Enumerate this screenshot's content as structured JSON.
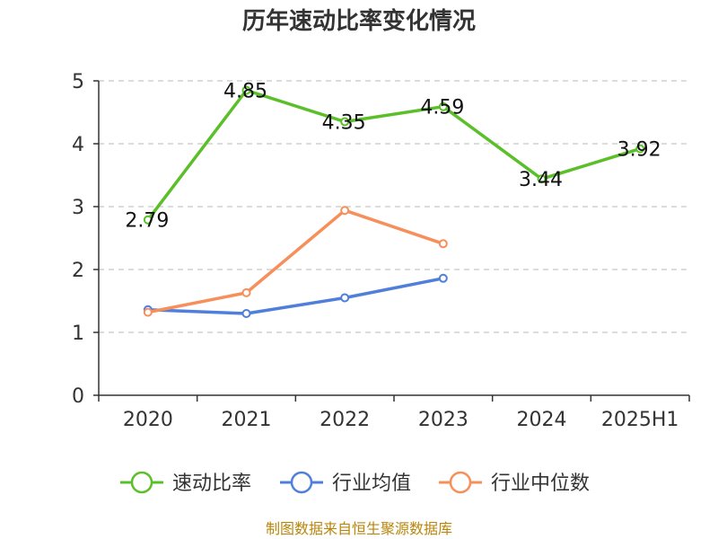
{
  "chart_data": {
    "type": "line",
    "title": "历年速动比率变化情况",
    "categories": [
      "2020",
      "2021",
      "2022",
      "2023",
      "2024",
      "2025H1"
    ],
    "ylim": [
      0,
      5
    ],
    "yticks": [
      0,
      1,
      2,
      3,
      4,
      5
    ],
    "grid": true,
    "legend_position": "bottom",
    "series": [
      {
        "name": "速动比率",
        "color": "#5bbf2a",
        "values": [
          2.79,
          4.85,
          4.35,
          4.59,
          3.44,
          3.92
        ],
        "labels": [
          "2.79",
          "4.85",
          "4.35",
          "4.59",
          "3.44",
          "3.92"
        ],
        "show_labels": true
      },
      {
        "name": "行业均值",
        "color": "#4f7fdb",
        "values": [
          1.36,
          1.3,
          1.55,
          1.86,
          null,
          null
        ],
        "show_labels": false
      },
      {
        "name": "行业中位数",
        "color": "#f78f5a",
        "values": [
          1.32,
          1.63,
          2.94,
          2.41,
          null,
          null
        ],
        "show_labels": false
      }
    ]
  },
  "source_text": "制图数据来自恒生聚源数据库"
}
